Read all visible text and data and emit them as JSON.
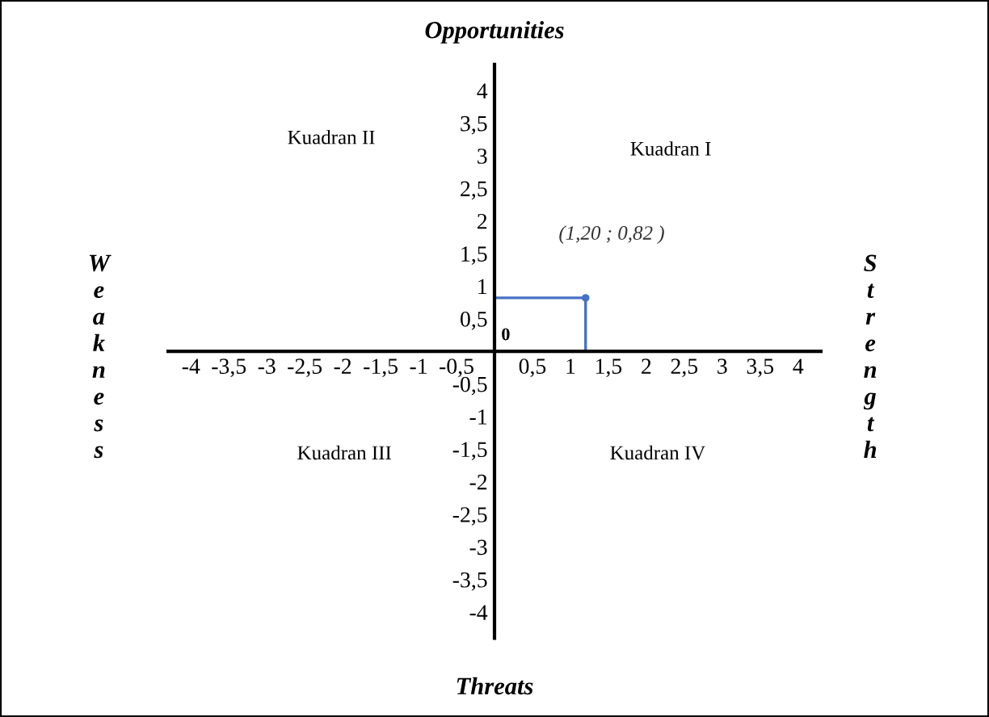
{
  "chart_data": {
    "type": "scatter",
    "title": "Opportunities",
    "xlabel": "Threats",
    "ylabel": "Weakness",
    "y2label": "Strength",
    "xlim": [
      -4.3,
      4.3
    ],
    "ylim": [
      -4.4,
      4.4
    ],
    "xticks": [
      {
        "value": -4,
        "label": "-4"
      },
      {
        "value": -3.5,
        "label": "-3,5"
      },
      {
        "value": -3,
        "label": "-3"
      },
      {
        "value": -2.5,
        "label": "-2,5"
      },
      {
        "value": -2,
        "label": "-2"
      },
      {
        "value": -1.5,
        "label": "-1,5"
      },
      {
        "value": -1,
        "label": "-1"
      },
      {
        "value": -0.5,
        "label": "-0,5"
      },
      {
        "value": 0.5,
        "label": "0,5"
      },
      {
        "value": 1,
        "label": "1"
      },
      {
        "value": 1.5,
        "label": "1,5"
      },
      {
        "value": 2,
        "label": "2"
      },
      {
        "value": 2.5,
        "label": "2,5"
      },
      {
        "value": 3,
        "label": "3"
      },
      {
        "value": 3.5,
        "label": "3,5"
      },
      {
        "value": 4,
        "label": "4"
      }
    ],
    "yticks": [
      {
        "value": -4,
        "label": "-4"
      },
      {
        "value": -3.5,
        "label": "-3,5"
      },
      {
        "value": -3,
        "label": "-3"
      },
      {
        "value": -2.5,
        "label": "-2,5"
      },
      {
        "value": -2,
        "label": "-2"
      },
      {
        "value": -1.5,
        "label": "-1,5"
      },
      {
        "value": -1,
        "label": "-1"
      },
      {
        "value": -0.5,
        "label": "-0,5"
      },
      {
        "value": 0.5,
        "label": "0,5"
      },
      {
        "value": 1,
        "label": "1"
      },
      {
        "value": 1.5,
        "label": "1,5"
      },
      {
        "value": 2,
        "label": "2"
      },
      {
        "value": 2.5,
        "label": "2,5"
      },
      {
        "value": 3,
        "label": "3"
      },
      {
        "value": 3.5,
        "label": "3,5"
      },
      {
        "value": 4,
        "label": "4"
      }
    ],
    "series": [
      {
        "color": "#4472c4",
        "x": [
          1.2
        ],
        "values": [
          0.82
        ]
      }
    ],
    "grid": false,
    "legend": false,
    "annotations": [
      {
        "text": "(1,20 ; 0,82 )",
        "x": 1.2,
        "y": 0.82
      },
      "0",
      "Kuadran I",
      "Kuadran II",
      "Kuadran III",
      "Kuadran IV"
    ]
  }
}
